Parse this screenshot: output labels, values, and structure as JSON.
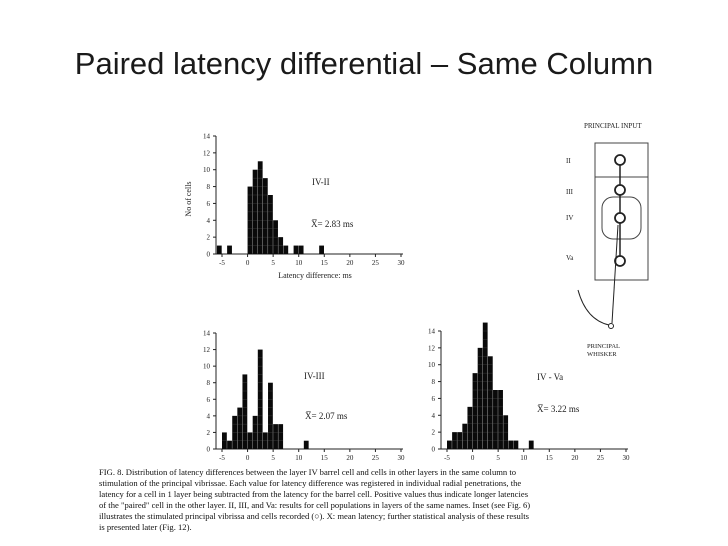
{
  "slide": {
    "title": "Paired latency differential – Same Column"
  },
  "chart_data": [
    {
      "type": "bar",
      "id": "hist-iv-ii",
      "label": "IV-II",
      "mean": "X̅= 2.83 ms",
      "xlabel": "Latency difference:  ms",
      "ylabel": "No of cells",
      "xlim": [
        -5,
        30
      ],
      "ylim": [
        0,
        14
      ],
      "xticks": [
        "-5",
        "0",
        "5",
        "10",
        "15",
        "20",
        "25",
        "30"
      ],
      "yticks": [
        "0",
        "2",
        "4",
        "6",
        "8",
        "10",
        "12",
        "14"
      ],
      "bins": [
        {
          "x": -5.5,
          "value": 1
        },
        {
          "x": -3.5,
          "value": 1
        },
        {
          "x": 0.5,
          "value": 8
        },
        {
          "x": 1.5,
          "value": 10
        },
        {
          "x": 2.5,
          "value": 11
        },
        {
          "x": 3.5,
          "value": 9
        },
        {
          "x": 4.5,
          "value": 7
        },
        {
          "x": 5.5,
          "value": 4
        },
        {
          "x": 6.5,
          "value": 2
        },
        {
          "x": 7.5,
          "value": 1
        },
        {
          "x": 9.5,
          "value": 1
        },
        {
          "x": 10.5,
          "value": 1
        },
        {
          "x": 14.5,
          "value": 1
        }
      ]
    },
    {
      "type": "bar",
      "id": "hist-iv-iii",
      "label": "IV-III",
      "mean": "X̅= 2.07 ms",
      "xlabel": "",
      "ylabel": "",
      "xlim": [
        -5,
        30
      ],
      "ylim": [
        0,
        14
      ],
      "xticks": [
        "-5",
        "0",
        "5",
        "10",
        "15",
        "20",
        "25",
        "30"
      ],
      "yticks": [
        "0",
        "2",
        "4",
        "6",
        "8",
        "10",
        "12",
        "14"
      ],
      "bins": [
        {
          "x": -4.5,
          "value": 2
        },
        {
          "x": -3.5,
          "value": 1
        },
        {
          "x": -2.5,
          "value": 4
        },
        {
          "x": -1.5,
          "value": 5
        },
        {
          "x": -0.5,
          "value": 9
        },
        {
          "x": 0.5,
          "value": 2
        },
        {
          "x": 1.5,
          "value": 4
        },
        {
          "x": 2.5,
          "value": 12
        },
        {
          "x": 3.5,
          "value": 2
        },
        {
          "x": 4.5,
          "value": 8
        },
        {
          "x": 5.5,
          "value": 3
        },
        {
          "x": 6.5,
          "value": 3
        },
        {
          "x": 11.5,
          "value": 1
        }
      ]
    },
    {
      "type": "bar",
      "id": "hist-iv-va",
      "label": "IV - Va",
      "mean": "X̅= 3.22 ms",
      "xlabel": "",
      "ylabel": "",
      "xlim": [
        -5,
        30
      ],
      "ylim": [
        0,
        14
      ],
      "xticks": [
        "-5",
        "0",
        "5",
        "10",
        "15",
        "20",
        "25",
        "30"
      ],
      "yticks": [
        "0",
        "2",
        "4",
        "6",
        "8",
        "10",
        "12",
        "14"
      ],
      "bins": [
        {
          "x": -4.5,
          "value": 1
        },
        {
          "x": -3.5,
          "value": 2
        },
        {
          "x": -2.5,
          "value": 2
        },
        {
          "x": -1.5,
          "value": 3
        },
        {
          "x": -0.5,
          "value": 5
        },
        {
          "x": 0.5,
          "value": 9
        },
        {
          "x": 1.5,
          "value": 12
        },
        {
          "x": 2.5,
          "value": 15
        },
        {
          "x": 3.5,
          "value": 11
        },
        {
          "x": 4.5,
          "value": 7
        },
        {
          "x": 5.5,
          "value": 7
        },
        {
          "x": 6.5,
          "value": 4
        },
        {
          "x": 7.5,
          "value": 1
        },
        {
          "x": 8.5,
          "value": 1
        },
        {
          "x": 11.5,
          "value": 1
        }
      ]
    }
  ],
  "inset": {
    "title": "PRINCIPAL INPUT",
    "layers": [
      "II",
      "III",
      "IV",
      "Va"
    ],
    "whisker_label_1": "PRINCIPAL",
    "whisker_label_2": "WHISKER"
  },
  "caption": {
    "lines": [
      "FIG. 8.   Distribution of latency differences between the layer IV barrel cell and cells in other layers in the same column to",
      "stimulation of the principal vibrissae. Each value for latency difference was registered in individual radial penetrations, the",
      "latency for a cell in 1 layer being subtracted from the latency for the barrel cell. Positive values thus indicate longer latencies",
      "of the \"paired\" cell in the other layer. II, III, and Va: results for cell populations in layers of the same names. Inset (see Fig. 6)",
      "illustrates the stimulated principal vibrissa and cells recorded (○). X: mean latency; further statistical analysis of these results",
      "is presented later (Fig. 12)."
    ]
  }
}
